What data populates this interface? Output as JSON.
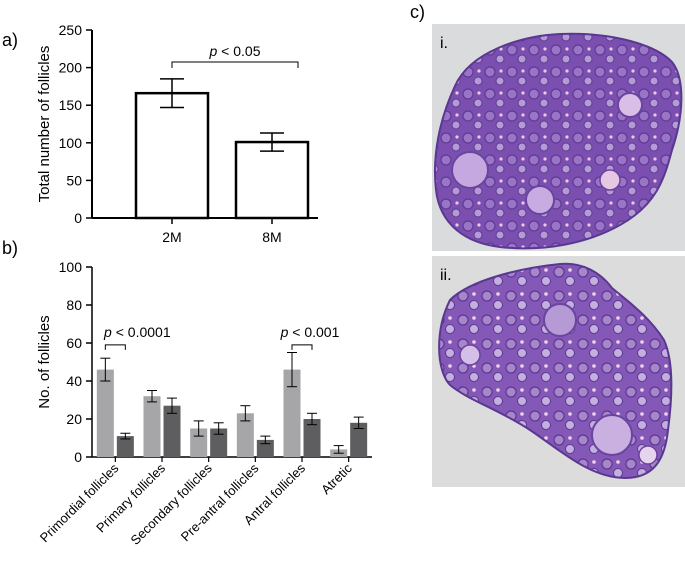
{
  "panel_labels": {
    "a": "a)",
    "b": "b)",
    "c": "c)"
  },
  "chart_data": [
    {
      "type": "bar",
      "panel": "a)",
      "categories": [
        "2M",
        "8M"
      ],
      "values": [
        166,
        101
      ],
      "errors": [
        19,
        12
      ],
      "ylabel": "Total number of follicles",
      "ylim": [
        0,
        250
      ],
      "yticks": [
        0,
        50,
        100,
        150,
        200,
        250
      ],
      "grid": false,
      "significance": {
        "label_italic": "p",
        "label_rest": " < 0.05",
        "between": [
          "2M",
          "8M"
        ]
      }
    },
    {
      "type": "bar",
      "panel": "b)",
      "categories": [
        "Primordial follicles",
        "Primary follicles",
        "Secondary follicles",
        "Pre-antral follicles",
        "Antral follicles",
        "Atretic"
      ],
      "series": [
        {
          "values": [
            46,
            32,
            15,
            23,
            46,
            4
          ],
          "errors": [
            6,
            3,
            4,
            4,
            9,
            2
          ],
          "color": "#a6a6a8"
        },
        {
          "values": [
            11,
            27,
            15,
            9,
            20,
            18
          ],
          "errors": [
            1.5,
            4,
            3,
            2,
            3,
            3
          ],
          "color": "#5e5e60"
        }
      ],
      "ylabel": "No. of follicles",
      "ylim": [
        0,
        100
      ],
      "yticks": [
        0,
        20,
        40,
        60,
        80,
        100
      ],
      "grid": false,
      "significance": [
        {
          "label_italic": "p",
          "label_rest": " < 0.0001",
          "category": "Primordial follicles"
        },
        {
          "label_italic": "p",
          "label_rest": " < 0.001",
          "category": "Antral follicles"
        }
      ]
    }
  ],
  "micrographs": [
    {
      "label": "i.",
      "stain_color": "#7a4fb0",
      "background": "#d9dbdd"
    },
    {
      "label": "ii.",
      "stain_color": "#8458b6",
      "background": "#dcdcdc"
    }
  ]
}
